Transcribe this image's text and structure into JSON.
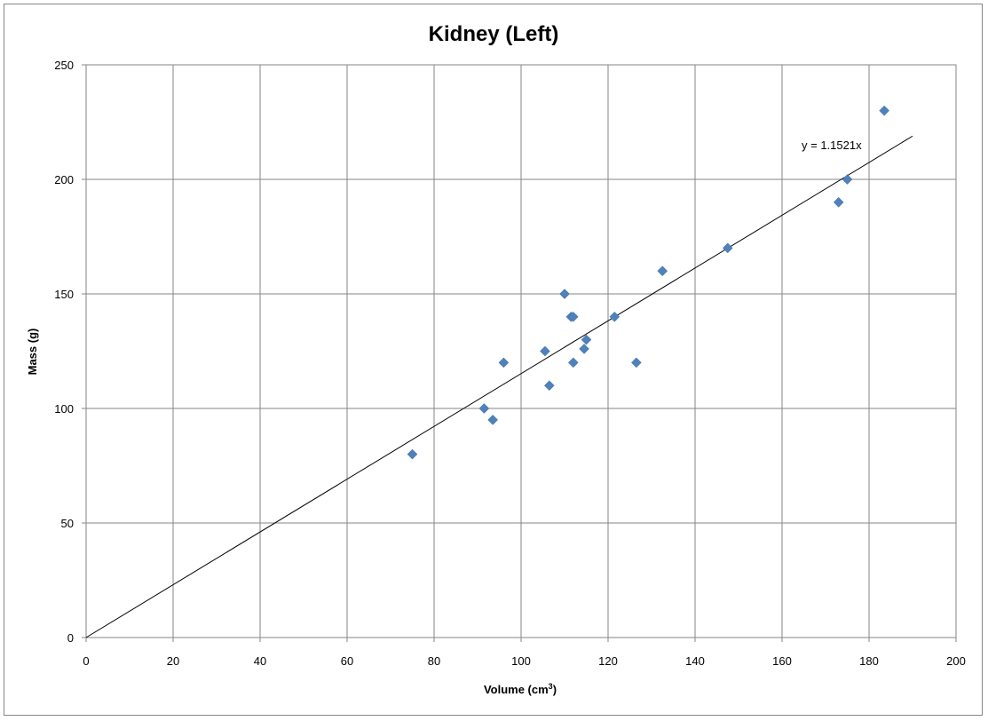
{
  "chart_data": {
    "type": "scatter",
    "title": "Kidney (Left)",
    "xlabel": "Volume (cm",
    "xlabel_sup": "3",
    "xlabel_close": ")",
    "ylabel": "Mass (g)",
    "xlim": [
      0,
      200
    ],
    "ylim": [
      0,
      250
    ],
    "x_ticks": [
      0,
      20,
      40,
      60,
      80,
      100,
      120,
      140,
      160,
      180,
      200
    ],
    "y_ticks": [
      0,
      50,
      100,
      150,
      200,
      250
    ],
    "grid": true,
    "marker": "diamond",
    "marker_color": "#4f81bd",
    "gridline_color": "#868686",
    "points": [
      {
        "x": 75,
        "y": 80
      },
      {
        "x": 91.5,
        "y": 100
      },
      {
        "x": 93.5,
        "y": 95
      },
      {
        "x": 96,
        "y": 120
      },
      {
        "x": 105.5,
        "y": 125
      },
      {
        "x": 106.5,
        "y": 110
      },
      {
        "x": 110,
        "y": 150
      },
      {
        "x": 111.5,
        "y": 140
      },
      {
        "x": 112,
        "y": 140
      },
      {
        "x": 112,
        "y": 120
      },
      {
        "x": 114.5,
        "y": 126
      },
      {
        "x": 115,
        "y": 130
      },
      {
        "x": 121.5,
        "y": 140
      },
      {
        "x": 126.5,
        "y": 120
      },
      {
        "x": 132.5,
        "y": 160
      },
      {
        "x": 147.5,
        "y": 170
      },
      {
        "x": 173,
        "y": 190
      },
      {
        "x": 175,
        "y": 200
      },
      {
        "x": 183.5,
        "y": 230
      }
    ],
    "trendline": {
      "slope": 1.1521,
      "x_range": [
        0,
        190
      ],
      "equation_label": "y = 1.1521x"
    }
  }
}
